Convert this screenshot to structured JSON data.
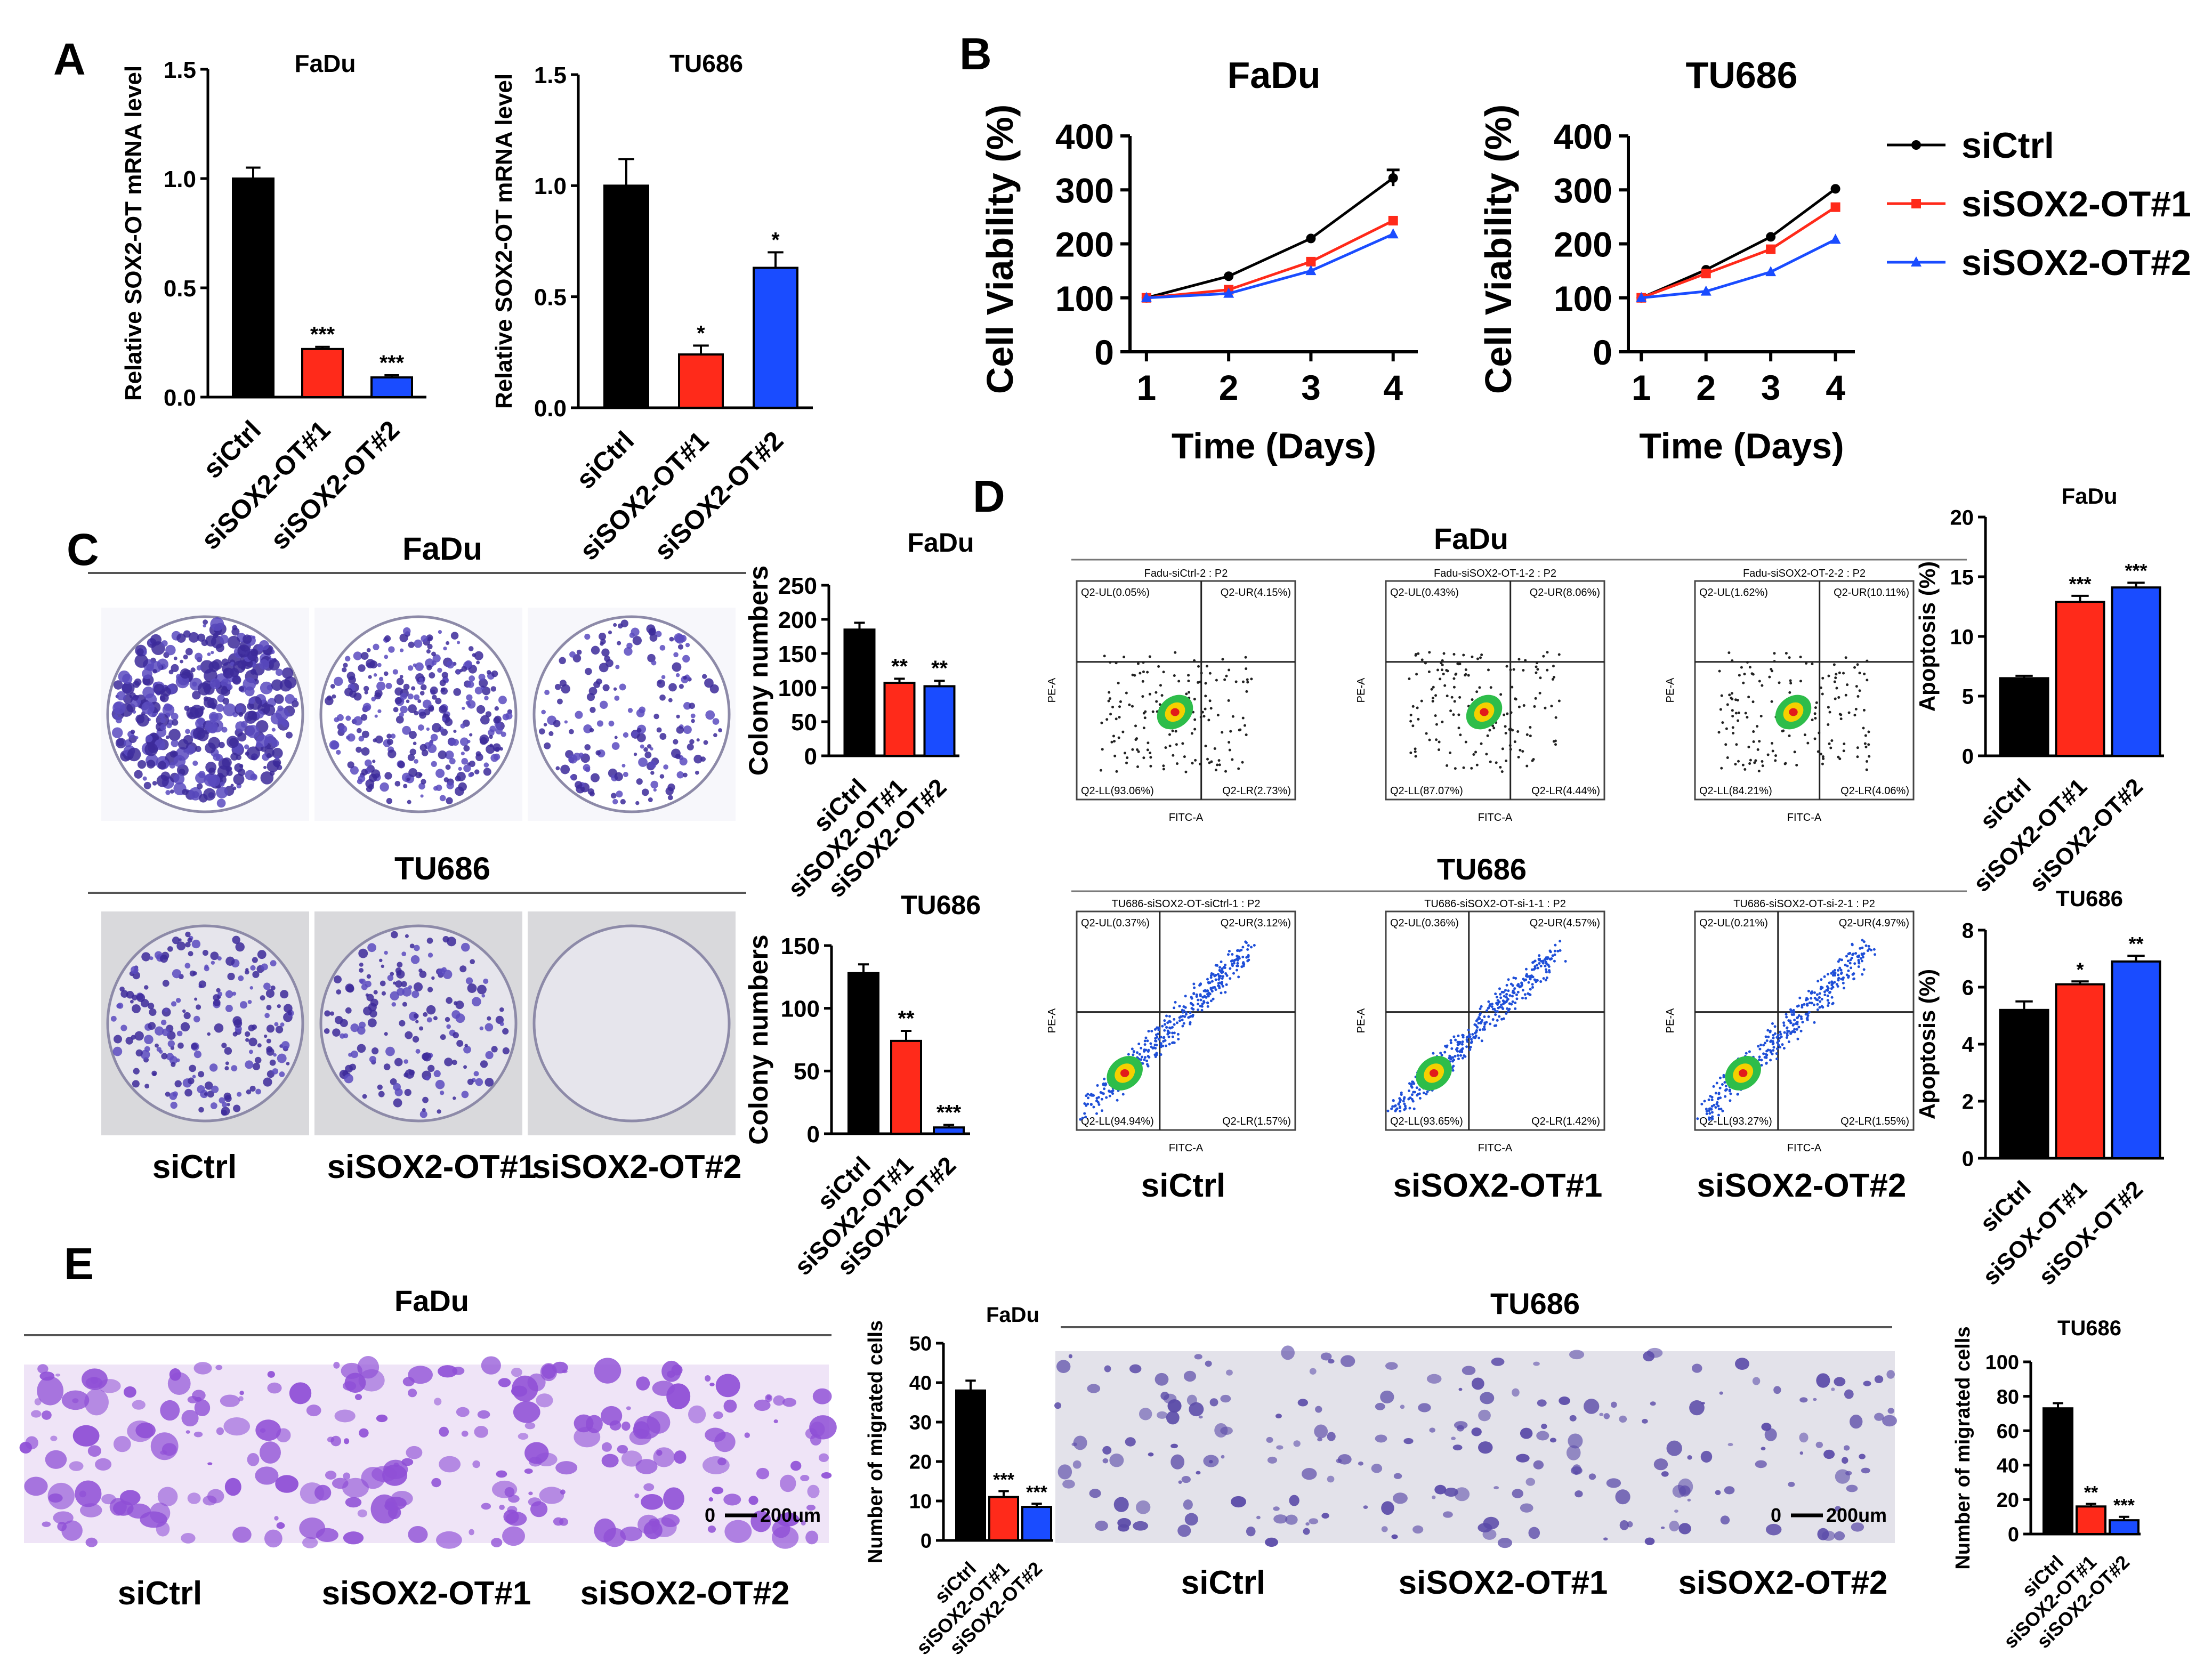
{
  "panel_labels": {
    "A": "A",
    "B": "B",
    "C": "C",
    "D": "D",
    "E": "E"
  },
  "colors": {
    "siCtrl": "#000000",
    "siSOX2_OT1": "#ff2a1a",
    "siSOX2_OT2": "#1a4cff"
  },
  "panel_c": {
    "fadu_header": "FaDu",
    "tu686_header": "TU686",
    "labels": [
      "siCtrl",
      "siSOX2-OT#1",
      "siSOX2-OT#2"
    ]
  },
  "panel_d": {
    "fadu_header": "FaDu",
    "tu686_header": "TU686",
    "labels": [
      "siCtrl",
      "siSOX2-OT#1",
      "siSOX2-OT#2"
    ],
    "plot_axes": {
      "x": "FITC-A",
      "y": "PE-A"
    },
    "fadu_plots": [
      {
        "title": "Fadu-siCtrl-2 : P2",
        "ul": "Q2-UL(0.05%)",
        "ur": "Q2-UR(4.15%)",
        "ll": "Q2-LL(93.06%)",
        "lr": "Q2-LR(2.73%)"
      },
      {
        "title": "Fadu-siSOX2-OT-1-2 : P2",
        "ul": "Q2-UL(0.43%)",
        "ur": "Q2-UR(8.06%)",
        "ll": "Q2-LL(87.07%)",
        "lr": "Q2-LR(4.44%)"
      },
      {
        "title": "Fadu-siSOX2-OT-2-2 : P2",
        "ul": "Q2-UL(1.62%)",
        "ur": "Q2-UR(10.11%)",
        "ll": "Q2-LL(84.21%)",
        "lr": "Q2-LR(4.06%)"
      }
    ],
    "tu686_plots": [
      {
        "title": "TU686-siSOX2-OT-siCtrl-1 : P2",
        "ul": "Q2-UL(0.37%)",
        "ur": "Q2-UR(3.12%)",
        "ll": "Q2-LL(94.94%)",
        "lr": "Q2-LR(1.57%)"
      },
      {
        "title": "TU686-siSOX2-OT-si-1-1 : P2",
        "ul": "Q2-UL(0.36%)",
        "ur": "Q2-UR(4.57%)",
        "ll": "Q2-LL(93.65%)",
        "lr": "Q2-LR(1.42%)"
      },
      {
        "title": "TU686-siSOX2-OT-si-2-1 : P2",
        "ul": "Q2-UL(0.21%)",
        "ur": "Q2-UR(4.97%)",
        "ll": "Q2-LL(93.27%)",
        "lr": "Q2-LR(1.55%)"
      }
    ]
  },
  "panel_e": {
    "fadu_header": "FaDu",
    "tu686_header": "TU686",
    "labels": [
      "siCtrl",
      "siSOX2-OT#1",
      "siSOX2-OT#2"
    ],
    "scale_bar": {
      "zero": "0",
      "label": "200um"
    }
  },
  "chart_data": [
    {
      "id": "A-FaDu",
      "type": "bar",
      "title": "FaDu",
      "ylabel": "Relative SOX2-OT mRNA level",
      "categories": [
        "siCtrl",
        "siSOX2-OT#1",
        "siSOX2-OT#2"
      ],
      "values": [
        1.0,
        0.22,
        0.09
      ],
      "errors": [
        0.05,
        0.01,
        0.01
      ],
      "significance": [
        "",
        "***",
        "***"
      ],
      "ylim": [
        0,
        1.5
      ],
      "ticks": [
        0.0,
        0.5,
        1.0,
        1.5
      ],
      "tick_labels": [
        "0.0",
        "0.5",
        "1.0",
        "1.5"
      ]
    },
    {
      "id": "A-TU686",
      "type": "bar",
      "title": "TU686",
      "ylabel": "Relative SOX2-OT mRNA level",
      "categories": [
        "siCtrl",
        "siSOX2-OT#1",
        "siSOX2-OT#2"
      ],
      "values": [
        1.0,
        0.24,
        0.63
      ],
      "errors": [
        0.12,
        0.04,
        0.07
      ],
      "significance": [
        "",
        "*",
        "*"
      ],
      "ylim": [
        0,
        1.5
      ],
      "ticks": [
        0.0,
        0.5,
        1.0,
        1.5
      ],
      "tick_labels": [
        "0.0",
        "0.5",
        "1.0",
        "1.5"
      ]
    },
    {
      "id": "B-FaDu",
      "type": "line",
      "title": "FaDu",
      "xlabel": "Time (Days)",
      "ylabel": "Cell Viability (%)",
      "x": [
        1,
        2,
        3,
        4
      ],
      "xlim": [
        0.8,
        4.3
      ],
      "ylim": [
        0,
        400
      ],
      "xticks": [
        1,
        2,
        3,
        4
      ],
      "xtick_labels": [
        "1",
        "2",
        "3",
        "4"
      ],
      "ticks": [
        0,
        100,
        200,
        300,
        400
      ],
      "tick_labels": [
        "0",
        "100",
        "200",
        "300",
        "400"
      ],
      "series": [
        {
          "name": "siCtrl",
          "values": [
            100,
            140,
            210,
            322
          ],
          "errors": [
            0,
            0,
            0,
            15
          ]
        },
        {
          "name": "siSOX2-OT#1",
          "values": [
            100,
            115,
            167,
            243
          ],
          "errors": [
            0,
            0,
            0,
            0
          ]
        },
        {
          "name": "siSOX2-OT#2",
          "values": [
            100,
            108,
            150,
            218
          ],
          "errors": [
            0,
            0,
            0,
            0
          ]
        }
      ]
    },
    {
      "id": "B-TU686",
      "type": "line",
      "title": "TU686",
      "xlabel": "Time (Days)",
      "ylabel": "Cell Viability (%)",
      "x": [
        1,
        2,
        3,
        4
      ],
      "xlim": [
        0.8,
        4.3
      ],
      "ylim": [
        0,
        400
      ],
      "xticks": [
        1,
        2,
        3,
        4
      ],
      "xtick_labels": [
        "1",
        "2",
        "3",
        "4"
      ],
      "ticks": [
        0,
        100,
        200,
        300,
        400
      ],
      "tick_labels": [
        "0",
        "100",
        "200",
        "300",
        "400"
      ],
      "legend": [
        "siCtrl",
        "siSOX2-OT#1",
        "siSOX2-OT#2"
      ],
      "legend_position": "right",
      "series": [
        {
          "name": "siCtrl",
          "values": [
            100,
            152,
            213,
            302
          ],
          "errors": [
            0,
            0,
            0,
            0
          ]
        },
        {
          "name": "siSOX2-OT#1",
          "values": [
            100,
            145,
            190,
            268
          ],
          "errors": [
            0,
            0,
            0,
            0
          ]
        },
        {
          "name": "siSOX2-OT#2",
          "values": [
            100,
            112,
            148,
            208
          ],
          "errors": [
            0,
            0,
            0,
            0
          ]
        }
      ]
    },
    {
      "id": "C-FaDu",
      "type": "bar",
      "title": "FaDu",
      "ylabel": "Colony numbers",
      "categories": [
        "siCtrl",
        "siSOX2-OT#1",
        "siSOX2-OT#2"
      ],
      "values": [
        185,
        107,
        102
      ],
      "errors": [
        10,
        6,
        8
      ],
      "significance": [
        "",
        "**",
        "**"
      ],
      "ylim": [
        0,
        250
      ],
      "ticks": [
        0,
        50,
        100,
        150,
        200,
        250
      ],
      "tick_labels": [
        "0",
        "50",
        "100",
        "150",
        "200",
        "250"
      ]
    },
    {
      "id": "C-TU686",
      "type": "bar",
      "title": "TU686",
      "ylabel": "Colony numbers",
      "categories": [
        "siCtrl",
        "siSOX2-OT#1",
        "siSOX2-OT#2"
      ],
      "values": [
        128,
        74,
        5
      ],
      "errors": [
        7,
        8,
        2
      ],
      "significance": [
        "",
        "**",
        "***"
      ],
      "ylim": [
        0,
        150
      ],
      "ticks": [
        0,
        50,
        100,
        150
      ],
      "tick_labels": [
        "0",
        "50",
        "100",
        "150"
      ]
    },
    {
      "id": "D-FaDu",
      "type": "bar",
      "title": "FaDu",
      "ylabel": "Apoptosis (%)",
      "categories": [
        "siCtrl",
        "siSOX2-OT#1",
        "siSOX2-OT#2"
      ],
      "values": [
        6.5,
        12.9,
        14.1
      ],
      "errors": [
        0.2,
        0.5,
        0.4
      ],
      "significance": [
        "",
        "***",
        "***"
      ],
      "ylim": [
        0,
        20
      ],
      "ticks": [
        0,
        5,
        10,
        15,
        20
      ],
      "tick_labels": [
        "0",
        "5",
        "10",
        "15",
        "20"
      ]
    },
    {
      "id": "D-TU686",
      "type": "bar",
      "title": "TU686",
      "ylabel": "Apoptosis (%)",
      "categories": [
        "siCtrl",
        "siSOX-OT#1",
        "siSOX-OT#2"
      ],
      "values": [
        5.2,
        6.1,
        6.9
      ],
      "errors": [
        0.3,
        0.1,
        0.2
      ],
      "significance": [
        "",
        "*",
        "**"
      ],
      "ylim": [
        0,
        8
      ],
      "ticks": [
        0,
        2,
        4,
        6,
        8
      ],
      "tick_labels": [
        "0",
        "2",
        "4",
        "6",
        "8"
      ]
    },
    {
      "id": "E-FaDu",
      "type": "bar",
      "title": "FaDu",
      "ylabel": "Number of migrated cells",
      "categories": [
        "siCtrl",
        "siSOX2-OT#1",
        "siSOX2-OT#2"
      ],
      "values": [
        38,
        11,
        8.5
      ],
      "errors": [
        2.5,
        1.5,
        0.8
      ],
      "significance": [
        "",
        "***",
        "***"
      ],
      "ylim": [
        0,
        50
      ],
      "ticks": [
        0,
        10,
        20,
        30,
        40,
        50
      ],
      "tick_labels": [
        "0",
        "10",
        "20",
        "30",
        "40",
        "50"
      ]
    },
    {
      "id": "E-TU686",
      "type": "bar",
      "title": "TU686",
      "ylabel": "Number of migrated cells",
      "categories": [
        "siCtrl",
        "siSOX2-OT#1",
        "siSOX2-OT#2"
      ],
      "values": [
        73,
        16,
        8
      ],
      "errors": [
        3,
        1.5,
        2
      ],
      "significance": [
        "",
        "**",
        "***"
      ],
      "ylim": [
        0,
        100
      ],
      "ticks": [
        0,
        20,
        40,
        60,
        80,
        100
      ],
      "tick_labels": [
        "0",
        "20",
        "40",
        "60",
        "80",
        "100"
      ]
    }
  ]
}
